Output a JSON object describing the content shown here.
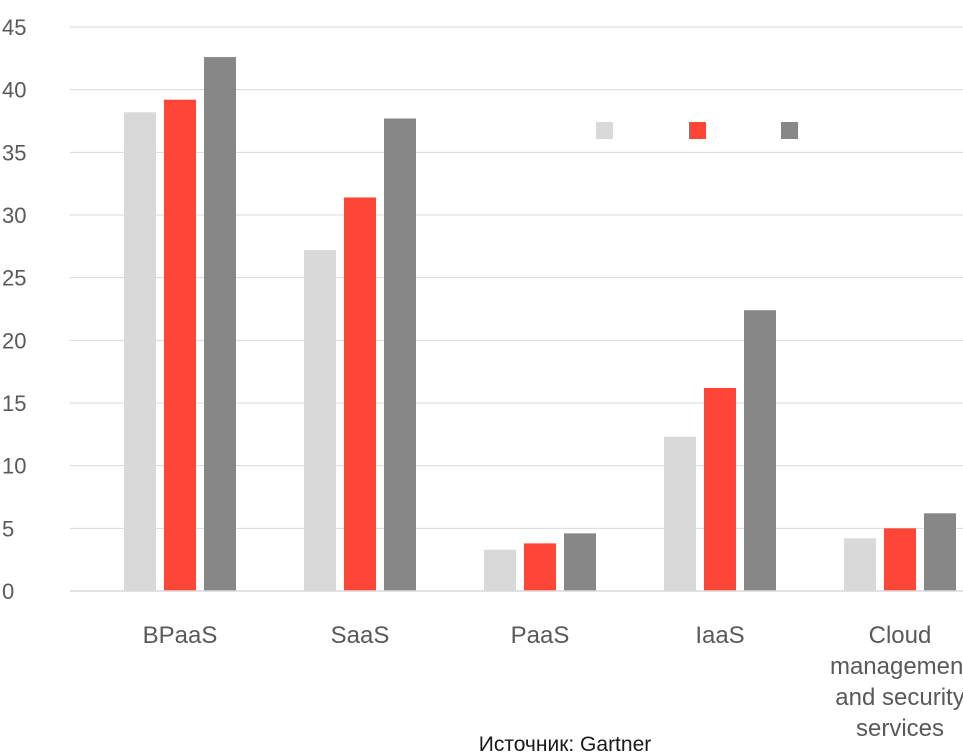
{
  "chart_data": {
    "type": "bar",
    "title": "",
    "xlabel": "",
    "ylabel": "",
    "categories": [
      [
        "BPaaS"
      ],
      [
        "SaaS"
      ],
      [
        "PaaS"
      ],
      [
        "IaaS"
      ],
      [
        "Cloud",
        "management",
        "and security",
        "services"
      ]
    ],
    "series": [
      {
        "color": "#d9d9d9",
        "values": [
          38.2,
          27.2,
          3.3,
          12.3,
          4.2
        ]
      },
      {
        "color": "#ff4536",
        "values": [
          39.2,
          31.4,
          3.8,
          16.2,
          5.0
        ]
      },
      {
        "color": "#878787",
        "values": [
          42.6,
          37.7,
          4.6,
          22.4,
          6.2
        ]
      }
    ],
    "ylim": [
      0,
      45
    ],
    "yticks": [
      0,
      5,
      10,
      15,
      20,
      25,
      30,
      35,
      40,
      45
    ],
    "grid": true,
    "legend_position": "top-right"
  },
  "source": {
    "text": "Источник: Gartner"
  }
}
